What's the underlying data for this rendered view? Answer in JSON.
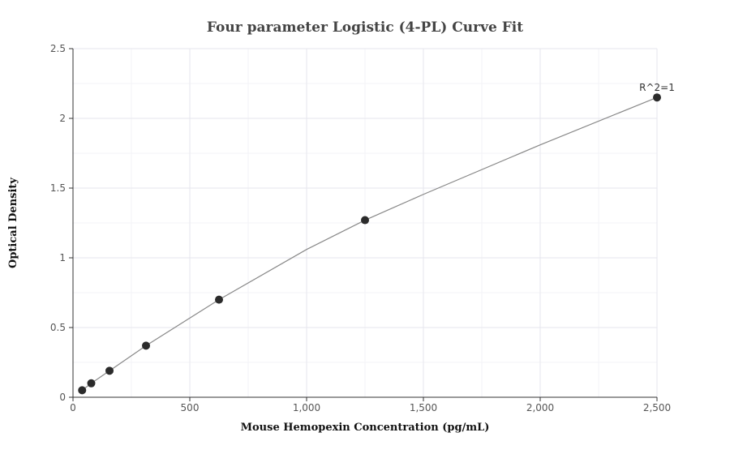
{
  "chart_data": {
    "type": "scatter",
    "title": "Four parameter Logistic (4-PL) Curve Fit",
    "xlabel": "Mouse Hemopexin Concentration (pg/mL)",
    "ylabel": "Optical Density",
    "xlim": [
      0,
      2500
    ],
    "ylim": [
      0,
      2.5
    ],
    "x_ticks": [
      0,
      500,
      1000,
      1500,
      2000,
      2500
    ],
    "x_tick_labels": [
      "0",
      "500",
      "1,000",
      "1,500",
      "2,000",
      "2,500"
    ],
    "y_ticks": [
      0,
      0.5,
      1,
      1.5,
      2,
      2.5
    ],
    "y_tick_labels": [
      "0",
      "0.5",
      "1",
      "1.5",
      "2",
      "2.5"
    ],
    "grid": true,
    "series": [
      {
        "x": [
          39.06,
          78.13,
          156.25,
          312.5,
          625,
          1250,
          2500
        ],
        "y": [
          0.05,
          0.1,
          0.19,
          0.37,
          0.7,
          1.27,
          2.15
        ]
      }
    ],
    "fit_curve": {
      "x": [
        39.06,
        78.13,
        156.25,
        312.5,
        625,
        1000,
        1250,
        1500,
        2000,
        2500
      ],
      "y": [
        0.05,
        0.1,
        0.19,
        0.37,
        0.7,
        1.06,
        1.27,
        1.455,
        1.81,
        2.15
      ]
    },
    "annotations": [
      {
        "text": "R^2=1",
        "x": 2500,
        "y": 2.15
      }
    ],
    "colors": {
      "points": "#2b2b2b",
      "fit_line": "#888888",
      "grid": "#e6e6ee"
    }
  }
}
